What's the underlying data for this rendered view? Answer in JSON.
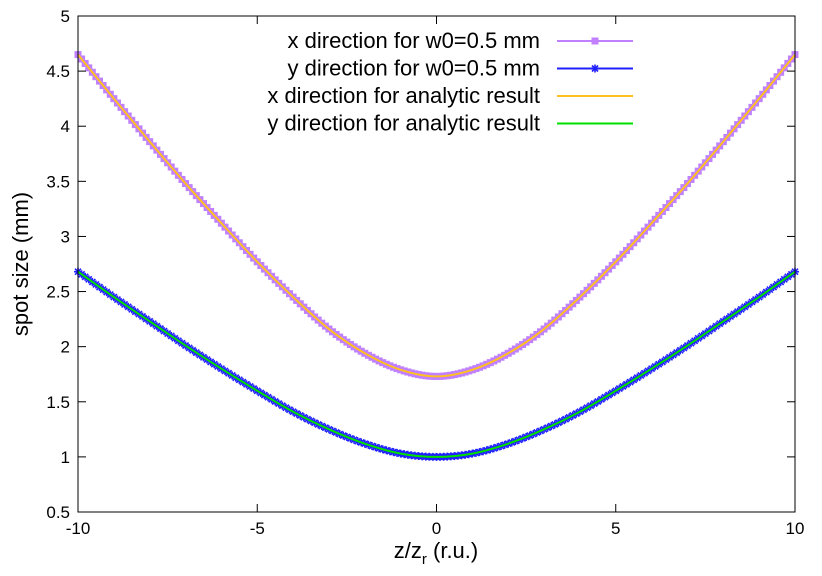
{
  "chart_data": {
    "type": "line",
    "xlabel": "z/z",
    "xlabel_sub": "r",
    "xlabel_suffix": " (r.u.)",
    "ylabel": "spot size (mm)",
    "xlim": [
      -10,
      10
    ],
    "ylim": [
      0.5,
      5
    ],
    "xticks": [
      "-10",
      "-5",
      "0",
      "5",
      "10"
    ],
    "yticks": [
      "0.5",
      "1",
      "1.5",
      "2",
      "2.5",
      "3",
      "3.5",
      "4",
      "4.5",
      "5"
    ],
    "grid": false,
    "legend_position": "top-right",
    "x": [
      -10,
      -9,
      -8,
      -7,
      -6,
      -5,
      -4,
      -3,
      -2,
      -1,
      0,
      1,
      2,
      3,
      4,
      5,
      6,
      7,
      8,
      9,
      10
    ],
    "series": [
      {
        "name": "x direction for w0=0.5 mm",
        "color": "#c080ff",
        "marker": "square",
        "values": [
          4.65,
          4.25,
          3.86,
          3.48,
          3.12,
          2.77,
          2.45,
          2.16,
          1.94,
          1.79,
          1.73,
          1.79,
          1.94,
          2.16,
          2.45,
          2.77,
          3.12,
          3.48,
          3.86,
          4.25,
          4.65
        ]
      },
      {
        "name": "y direction for w0=0.5 mm",
        "color": "#2020ff",
        "marker": "star",
        "values": [
          2.68,
          2.45,
          2.23,
          2.01,
          1.8,
          1.6,
          1.41,
          1.25,
          1.12,
          1.03,
          1.0,
          1.03,
          1.12,
          1.25,
          1.41,
          1.6,
          1.8,
          2.01,
          2.23,
          2.45,
          2.68
        ]
      },
      {
        "name": "x direction for analytic result",
        "color": "#ffc020",
        "marker": "none",
        "values": [
          4.65,
          4.25,
          3.86,
          3.48,
          3.12,
          2.77,
          2.45,
          2.16,
          1.94,
          1.79,
          1.73,
          1.79,
          1.94,
          2.16,
          2.45,
          2.77,
          3.12,
          3.48,
          3.86,
          4.25,
          4.65
        ]
      },
      {
        "name": "y direction for analytic result",
        "color": "#00e000",
        "marker": "none",
        "values": [
          2.68,
          2.45,
          2.23,
          2.01,
          1.8,
          1.6,
          1.41,
          1.25,
          1.12,
          1.03,
          1.0,
          1.03,
          1.12,
          1.25,
          1.41,
          1.6,
          1.8,
          2.01,
          2.23,
          2.45,
          2.68
        ]
      }
    ]
  }
}
